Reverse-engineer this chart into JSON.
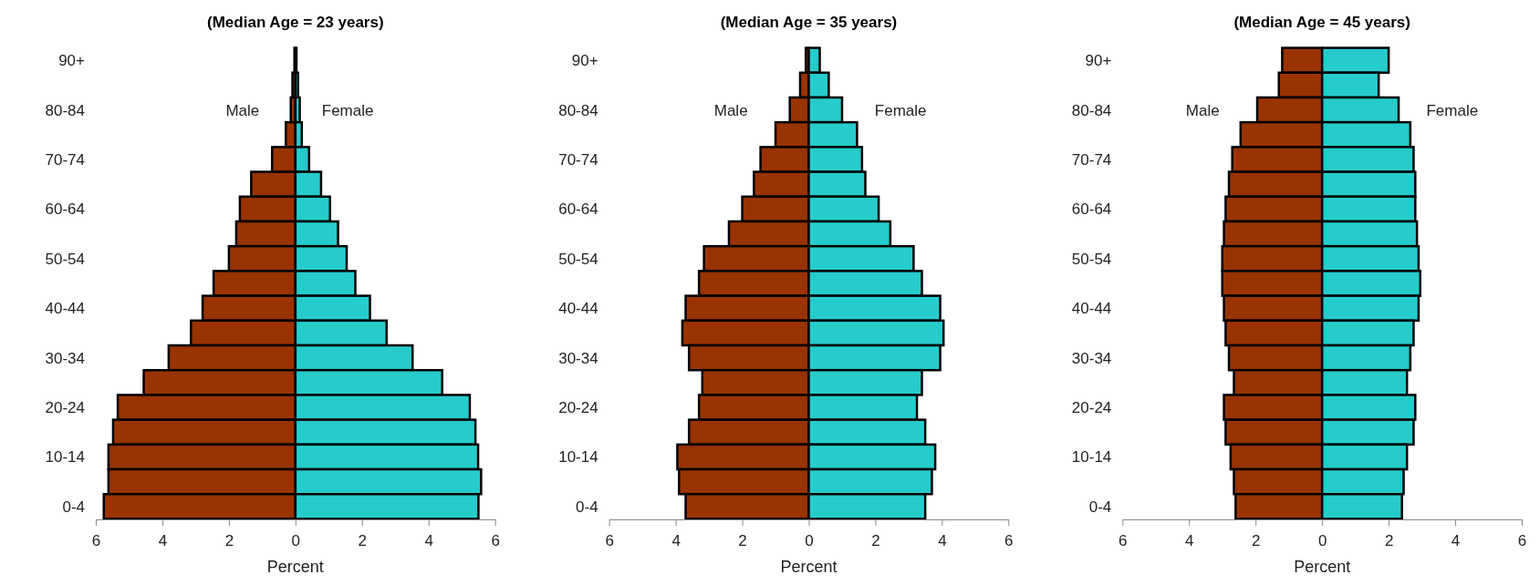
{
  "chart_data": [
    {
      "type": "bar",
      "orientation": "horizontal",
      "stacked": true,
      "title": "(Median Age = 23 years)",
      "xlabel": "Percent",
      "categories": [
        "90+",
        null,
        "80-84",
        null,
        "70-74",
        null,
        "60-64",
        null,
        "50-54",
        null,
        "40-44",
        null,
        "30-34",
        null,
        "20-24",
        null,
        "10-14",
        null,
        "0-4"
      ],
      "xlim": [
        -6,
        6
      ],
      "xticks": [
        {
          "value": -6,
          "label": "6"
        },
        {
          "value": -4,
          "label": "4"
        },
        {
          "value": -2,
          "label": "2"
        },
        0,
        2,
        4,
        6
      ],
      "series": [
        {
          "name": "Male",
          "color": "#993300",
          "values": [
            -0.03,
            -0.09,
            -0.14,
            -0.29,
            -0.7,
            -1.33,
            -1.67,
            -1.78,
            -2.0,
            -2.46,
            -2.79,
            -3.14,
            -3.81,
            -4.56,
            -5.34,
            -5.48,
            -5.62,
            -5.62,
            -5.76
          ]
        },
        {
          "name": "Female",
          "color": "#26cccc",
          "values": [
            0.03,
            0.08,
            0.13,
            0.19,
            0.41,
            0.77,
            1.04,
            1.28,
            1.54,
            1.8,
            2.24,
            2.74,
            3.52,
            4.41,
            5.24,
            5.41,
            5.49,
            5.58,
            5.5
          ]
        }
      ]
    },
    {
      "type": "bar",
      "orientation": "horizontal",
      "stacked": true,
      "title": "(Median Age = 35 years)",
      "xlabel": "Percent",
      "categories": [
        "90+",
        null,
        "80-84",
        null,
        "70-74",
        null,
        "60-64",
        null,
        "50-54",
        null,
        "40-44",
        null,
        "30-34",
        null,
        "20-24",
        null,
        "10-14",
        null,
        "0-4"
      ],
      "xlim": [
        -6,
        6
      ],
      "xticks": [
        {
          "value": -6,
          "label": "6"
        },
        {
          "value": -4,
          "label": "4"
        },
        {
          "value": -2,
          "label": "2"
        },
        0,
        2,
        4,
        6
      ],
      "series": [
        {
          "name": "Male",
          "color": "#993300",
          "values": [
            -0.09,
            -0.26,
            -0.57,
            -1.0,
            -1.45,
            -1.65,
            -2.0,
            -2.4,
            -3.15,
            -3.3,
            -3.7,
            -3.8,
            -3.6,
            -3.2,
            -3.3,
            -3.6,
            -3.95,
            -3.9,
            -3.7
          ]
        },
        {
          "name": "Female",
          "color": "#26cccc",
          "values": [
            0.33,
            0.6,
            1.0,
            1.45,
            1.6,
            1.7,
            2.1,
            2.45,
            3.15,
            3.4,
            3.95,
            4.05,
            3.95,
            3.4,
            3.25,
            3.5,
            3.8,
            3.7,
            3.5
          ]
        }
      ]
    },
    {
      "type": "bar",
      "orientation": "horizontal",
      "stacked": true,
      "title": "(Median Age = 45 years)",
      "xlabel": "Percent",
      "categories": [
        "90+",
        null,
        "80-84",
        null,
        "70-74",
        null,
        "60-64",
        null,
        "50-54",
        null,
        "40-44",
        null,
        "30-34",
        null,
        "20-24",
        null,
        "10-14",
        null,
        "0-4"
      ],
      "xlim": [
        -6,
        6
      ],
      "xticks": [
        {
          "value": -6,
          "label": "6"
        },
        {
          "value": -4,
          "label": "4"
        },
        {
          "value": -2,
          "label": "2"
        },
        0,
        2,
        4,
        6
      ],
      "series": [
        {
          "name": "Male",
          "color": "#993300",
          "values": [
            -1.2,
            -1.3,
            -1.95,
            -2.45,
            -2.7,
            -2.8,
            -2.9,
            -2.95,
            -3.0,
            -3.0,
            -2.95,
            -2.9,
            -2.8,
            -2.65,
            -2.95,
            -2.9,
            -2.75,
            -2.65,
            -2.6
          ]
        },
        {
          "name": "Female",
          "color": "#26cccc",
          "values": [
            2.0,
            1.7,
            2.3,
            2.65,
            2.75,
            2.8,
            2.8,
            2.85,
            2.9,
            2.95,
            2.9,
            2.75,
            2.65,
            2.55,
            2.8,
            2.75,
            2.55,
            2.45,
            2.4
          ]
        }
      ]
    }
  ]
}
